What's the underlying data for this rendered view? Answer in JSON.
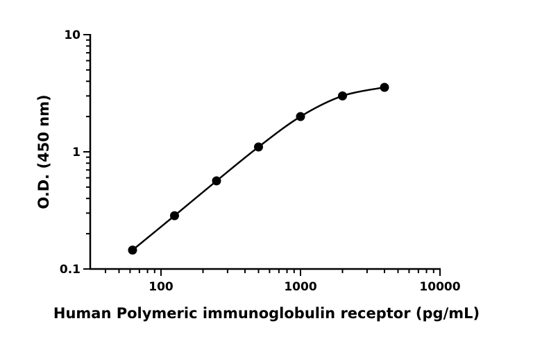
{
  "chart_data": {
    "type": "scatter",
    "xlabel": "Human Polymeric immunoglobulin receptor (pg/mL)",
    "ylabel": "O.D. (450 nm)",
    "xscale": "log",
    "yscale": "log",
    "xlim": [
      30,
      10000
    ],
    "ylim": [
      0.1,
      10
    ],
    "xticks": [
      {
        "value": 100,
        "label": "100"
      },
      {
        "value": 1000,
        "label": "1000"
      },
      {
        "value": 10000,
        "label": "10000"
      }
    ],
    "yticks": [
      {
        "value": 0.1,
        "label": "0.1"
      },
      {
        "value": 1,
        "label": "1"
      },
      {
        "value": 10,
        "label": "10"
      }
    ],
    "points": [
      {
        "x": 62.5,
        "y": 0.145
      },
      {
        "x": 125,
        "y": 0.285
      },
      {
        "x": 250,
        "y": 0.565
      },
      {
        "x": 500,
        "y": 1.1
      },
      {
        "x": 1000,
        "y": 2.0
      },
      {
        "x": 2000,
        "y": 3.0
      },
      {
        "x": 4000,
        "y": 3.55
      }
    ],
    "fit_curve": true,
    "grid": false,
    "legend": "none",
    "colors": {
      "series": "#000000"
    }
  }
}
